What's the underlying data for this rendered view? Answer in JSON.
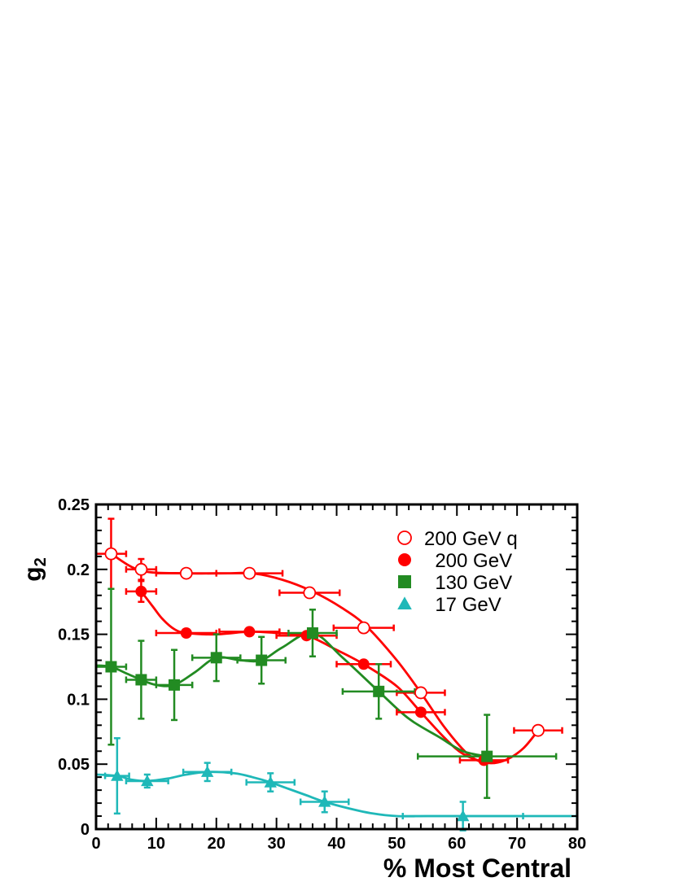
{
  "chart_data": {
    "type": "scatter",
    "title": "",
    "xlabel": "% Most Central",
    "ylabel_main": "g",
    "ylabel_sub": "2",
    "xlim": [
      0,
      80
    ],
    "ylim": [
      0,
      0.25
    ],
    "x_ticks": [
      0,
      10,
      20,
      30,
      40,
      50,
      60,
      70,
      80
    ],
    "x_tick_labels": [
      "0",
      "10",
      "20",
      "30",
      "40",
      "50",
      "60",
      "70",
      "80"
    ],
    "y_ticks": [
      0,
      0.05,
      0.1,
      0.15,
      0.2,
      0.25
    ],
    "y_tick_labels": [
      "0",
      "0.05",
      "0.1",
      "0.15",
      "0.2",
      "0.25"
    ],
    "grid": false,
    "legend_position": "top-right",
    "series": [
      {
        "name": "200 GeV q",
        "marker": "open-circle",
        "color": "#ff0000",
        "points": [
          {
            "x": 2.5,
            "y": 0.212,
            "xerr": 2.5,
            "yerr": 0.027
          },
          {
            "x": 7.5,
            "y": 0.2,
            "xerr": 2.5,
            "yerr": 0.008
          },
          {
            "x": 15,
            "y": 0.197,
            "xerr": 5,
            "yerr": 0.0
          },
          {
            "x": 25.5,
            "y": 0.197,
            "xerr": 5.5,
            "yerr": 0.0
          },
          {
            "x": 35.5,
            "y": 0.182,
            "xerr": 5,
            "yerr": 0.0
          },
          {
            "x": 44.5,
            "y": 0.155,
            "xerr": 5,
            "yerr": 0.0
          },
          {
            "x": 54,
            "y": 0.105,
            "xerr": 4,
            "yerr": 0.0
          },
          {
            "x": 73.5,
            "y": 0.076,
            "xerr": 4,
            "yerr": 0.0
          }
        ],
        "curve": [
          [
            2.5,
            0.212
          ],
          [
            7.5,
            0.199
          ],
          [
            15,
            0.197
          ],
          [
            22,
            0.197
          ],
          [
            26,
            0.197
          ],
          [
            31,
            0.192
          ],
          [
            36,
            0.183
          ],
          [
            41,
            0.17
          ],
          [
            45,
            0.156
          ],
          [
            50,
            0.13
          ],
          [
            54,
            0.105
          ],
          [
            58,
            0.078
          ],
          [
            62,
            0.057
          ],
          [
            65,
            0.051
          ],
          [
            68,
            0.053
          ],
          [
            71,
            0.062
          ],
          [
            73.5,
            0.076
          ]
        ]
      },
      {
        "name": "200 GeV",
        "marker": "filled-circle",
        "color": "#ff0000",
        "points": [
          {
            "x": 7.5,
            "y": 0.183,
            "xerr": 2.5,
            "yerr": 0.008
          },
          {
            "x": 15,
            "y": 0.151,
            "xerr": 5,
            "yerr": 0.0
          },
          {
            "x": 25.5,
            "y": 0.152,
            "xerr": 5,
            "yerr": 0.0
          },
          {
            "x": 35,
            "y": 0.149,
            "xerr": 5,
            "yerr": 0.0
          },
          {
            "x": 44.5,
            "y": 0.127,
            "xerr": 4.5,
            "yerr": 0.0
          },
          {
            "x": 54,
            "y": 0.09,
            "xerr": 4,
            "yerr": 0.0
          },
          {
            "x": 64.5,
            "y": 0.053,
            "xerr": 4,
            "yerr": 0.0
          }
        ],
        "curve": [
          [
            7.5,
            0.183
          ],
          [
            9.5,
            0.171
          ],
          [
            11,
            0.162
          ],
          [
            13,
            0.154
          ],
          [
            15,
            0.151
          ],
          [
            20,
            0.15
          ],
          [
            25.5,
            0.152
          ],
          [
            30,
            0.151
          ],
          [
            35,
            0.149
          ],
          [
            40,
            0.138
          ],
          [
            44.5,
            0.127
          ],
          [
            50,
            0.11
          ],
          [
            54,
            0.09
          ],
          [
            58,
            0.07
          ],
          [
            61,
            0.058
          ],
          [
            64.5,
            0.052
          ],
          [
            68,
            0.053
          ]
        ]
      },
      {
        "name": "130 GeV",
        "marker": "filled-square",
        "color": "#228b22",
        "points": [
          {
            "x": 2.5,
            "y": 0.125,
            "xerr": 2.5,
            "yerr": 0.06
          },
          {
            "x": 7.5,
            "y": 0.115,
            "xerr": 2.5,
            "yerr": 0.03
          },
          {
            "x": 13,
            "y": 0.111,
            "xerr": 3,
            "yerr": 0.027
          },
          {
            "x": 20,
            "y": 0.132,
            "xerr": 4,
            "yerr": 0.018
          },
          {
            "x": 27.5,
            "y": 0.13,
            "xerr": 4,
            "yerr": 0.018
          },
          {
            "x": 36,
            "y": 0.151,
            "xerr": 4,
            "yerr": 0.018
          },
          {
            "x": 47,
            "y": 0.106,
            "xerr": 6,
            "yerr": 0.021
          },
          {
            "x": 65,
            "y": 0.056,
            "xerr": 11.5,
            "yerr": 0.032
          }
        ],
        "curve": [
          [
            0,
            0.126
          ],
          [
            2.5,
            0.125
          ],
          [
            5,
            0.12
          ],
          [
            7.5,
            0.115
          ],
          [
            10,
            0.111
          ],
          [
            13,
            0.111
          ],
          [
            16.5,
            0.121
          ],
          [
            20,
            0.132
          ],
          [
            24,
            0.13
          ],
          [
            27.5,
            0.13
          ],
          [
            31,
            0.14
          ],
          [
            36,
            0.151
          ],
          [
            41,
            0.132
          ],
          [
            47,
            0.106
          ],
          [
            52,
            0.085
          ],
          [
            57,
            0.071
          ],
          [
            61,
            0.06
          ],
          [
            65,
            0.056
          ]
        ]
      },
      {
        "name": "17 GeV",
        "marker": "filled-triangle",
        "color": "#1fb8b8",
        "points": [
          {
            "x": 3.5,
            "y": 0.041,
            "xerr": 2,
            "yerr": 0.029
          },
          {
            "x": 8.5,
            "y": 0.037,
            "xerr": 3.5,
            "yerr": 0.005
          },
          {
            "x": 18.5,
            "y": 0.044,
            "xerr": 4,
            "yerr": 0.007
          },
          {
            "x": 29,
            "y": 0.036,
            "xerr": 4,
            "yerr": 0.007
          },
          {
            "x": 38,
            "y": 0.021,
            "xerr": 4,
            "yerr": 0.008
          },
          {
            "x": 61,
            "y": 0.01,
            "xerr": 10,
            "yerr": 0.011
          }
        ],
        "curve": [
          [
            0,
            0.042
          ],
          [
            3.5,
            0.041
          ],
          [
            6,
            0.038
          ],
          [
            8.5,
            0.037
          ],
          [
            12,
            0.039
          ],
          [
            15,
            0.042
          ],
          [
            18.5,
            0.044
          ],
          [
            23,
            0.043
          ],
          [
            26,
            0.04
          ],
          [
            29,
            0.036
          ],
          [
            32,
            0.031
          ],
          [
            35,
            0.026
          ],
          [
            38,
            0.021
          ],
          [
            42,
            0.016
          ],
          [
            46,
            0.012
          ],
          [
            50,
            0.01
          ],
          [
            55,
            0.01
          ],
          [
            61,
            0.01
          ],
          [
            70,
            0.01
          ],
          [
            80,
            0.01
          ]
        ]
      }
    ]
  }
}
